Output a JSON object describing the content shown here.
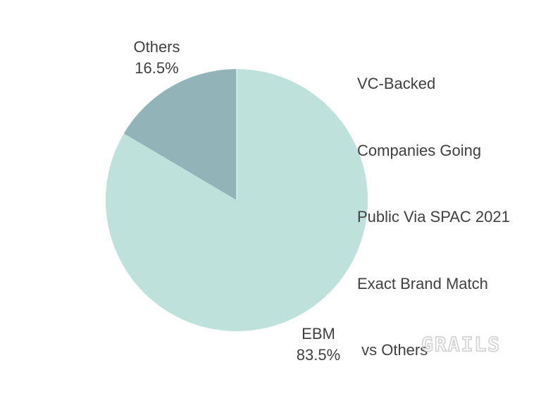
{
  "title": {
    "lines": [
      "VC-Backed",
      "Companies Going",
      "Public Via SPAC 2021",
      "Exact Brand Match",
      " vs Others"
    ]
  },
  "labels": {
    "others": {
      "name": "Others",
      "value": "16.5%"
    },
    "ebm": {
      "name": "EBM",
      "value": "83.5%"
    }
  },
  "logo": {
    "text": "GRAILS"
  },
  "colors": {
    "ebm_slice": "#bfe1dc",
    "others_slice": "#92b4b8",
    "text": "#404040",
    "logo": "#d4d4d4",
    "background": "#ffffff"
  },
  "chart_data": {
    "type": "pie",
    "title": "VC-Backed Companies Going Public Via SPAC 2021 Exact Brand Match vs Others",
    "slices": [
      {
        "label": "EBM",
        "value": 83.5,
        "color": "#bfe1dc"
      },
      {
        "label": "Others",
        "value": 16.5,
        "color": "#92b4b8"
      }
    ],
    "unit": "%",
    "start_angle_deg": 0,
    "direction": "clockwise",
    "legend_position": "none",
    "data_labels": "outside"
  }
}
